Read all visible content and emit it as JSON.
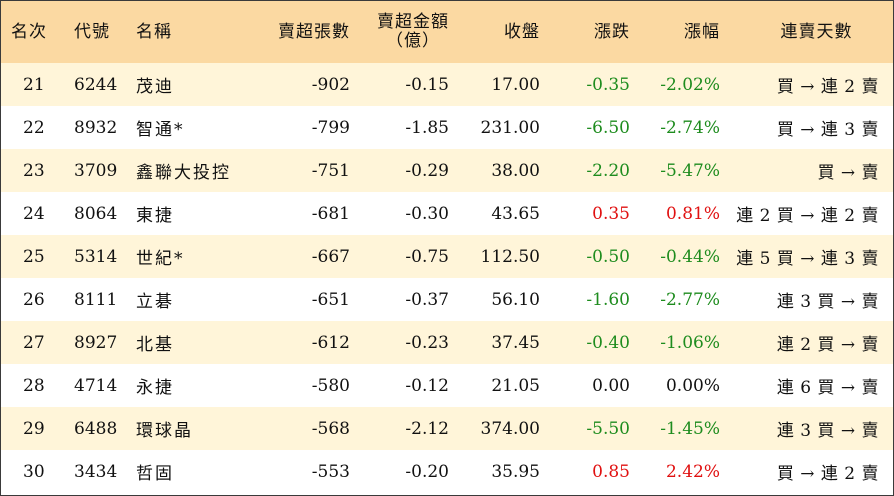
{
  "headers": {
    "rank": "名次",
    "code": "代號",
    "name": "名稱",
    "net_sell_volume": "賣超張數",
    "net_sell_amount_line1": "賣超金額",
    "net_sell_amount_line2": "（億）",
    "close": "收盤",
    "change": "漲跌",
    "change_pct": "漲幅",
    "streak": "連賣天數"
  },
  "colors": {
    "header_bg": "#fbd9a2",
    "odd_row_bg": "#fff5d9",
    "even_row_bg": "#ffffff",
    "negative": "#1e8c1e",
    "positive": "#e01010"
  },
  "rows": [
    {
      "rank": "21",
      "code": "6244",
      "name": "茂迪",
      "volume": "-902",
      "amount": "-0.15",
      "close": "17.00",
      "change": "-0.35",
      "pct": "-2.02%",
      "trend": "neg",
      "streak": "買 → 連 2 賣"
    },
    {
      "rank": "22",
      "code": "8932",
      "name": "智通*",
      "volume": "-799",
      "amount": "-1.85",
      "close": "231.00",
      "change": "-6.50",
      "pct": "-2.74%",
      "trend": "neg",
      "streak": "買 → 連 3 賣"
    },
    {
      "rank": "23",
      "code": "3709",
      "name": "鑫聯大投控",
      "volume": "-751",
      "amount": "-0.29",
      "close": "38.00",
      "change": "-2.20",
      "pct": "-5.47%",
      "trend": "neg",
      "streak": "買 → 賣"
    },
    {
      "rank": "24",
      "code": "8064",
      "name": "東捷",
      "volume": "-681",
      "amount": "-0.30",
      "close": "43.65",
      "change": "0.35",
      "pct": "0.81%",
      "trend": "pos",
      "streak": "連 2 買 → 連 2 賣"
    },
    {
      "rank": "25",
      "code": "5314",
      "name": "世紀*",
      "volume": "-667",
      "amount": "-0.75",
      "close": "112.50",
      "change": "-0.50",
      "pct": "-0.44%",
      "trend": "neg",
      "streak": "連 5 買 → 連 3 賣"
    },
    {
      "rank": "26",
      "code": "8111",
      "name": "立碁",
      "volume": "-651",
      "amount": "-0.37",
      "close": "56.10",
      "change": "-1.60",
      "pct": "-2.77%",
      "trend": "neg",
      "streak": "連 3 買 → 賣"
    },
    {
      "rank": "27",
      "code": "8927",
      "name": "北基",
      "volume": "-612",
      "amount": "-0.23",
      "close": "37.45",
      "change": "-0.40",
      "pct": "-1.06%",
      "trend": "neg",
      "streak": "連 2 買 → 賣"
    },
    {
      "rank": "28",
      "code": "4714",
      "name": "永捷",
      "volume": "-580",
      "amount": "-0.12",
      "close": "21.05",
      "change": "0.00",
      "pct": "0.00%",
      "trend": "flat",
      "streak": "連 6 買 → 賣"
    },
    {
      "rank": "29",
      "code": "6488",
      "name": "環球晶",
      "volume": "-568",
      "amount": "-2.12",
      "close": "374.00",
      "change": "-5.50",
      "pct": "-1.45%",
      "trend": "neg",
      "streak": "連 3 買 → 賣"
    },
    {
      "rank": "30",
      "code": "3434",
      "name": "哲固",
      "volume": "-553",
      "amount": "-0.20",
      "close": "35.95",
      "change": "0.85",
      "pct": "2.42%",
      "trend": "pos",
      "streak": "買 → 連 2 賣"
    }
  ]
}
